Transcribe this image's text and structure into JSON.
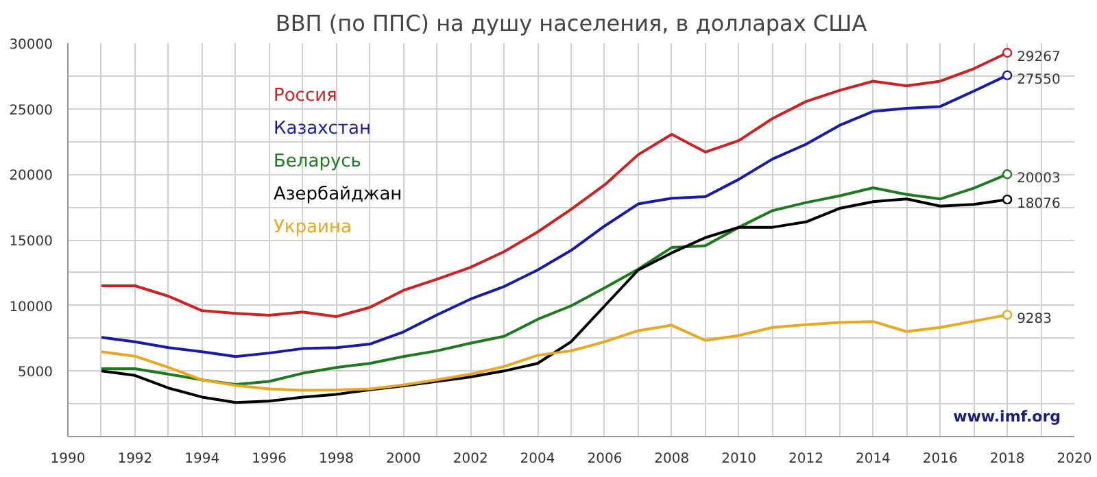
{
  "chart_data": {
    "type": "line",
    "title": "ВВП (по ППС) на душу населения, в долларах США",
    "x": [
      1991,
      1992,
      1993,
      1994,
      1995,
      1996,
      1997,
      1998,
      1999,
      2000,
      2001,
      2002,
      2003,
      2004,
      2005,
      2006,
      2007,
      2008,
      2009,
      2010,
      2011,
      2012,
      2013,
      2014,
      2015,
      2016,
      2017,
      2018
    ],
    "series": [
      {
        "name": "Россия",
        "color": "#cc2222",
        "values": [
          11500,
          11500,
          10700,
          9600,
          9400,
          9250,
          9500,
          9150,
          9850,
          11150,
          12000,
          12900,
          14100,
          15600,
          17330,
          19200,
          21500,
          23050,
          21700,
          22570,
          24250,
          25550,
          26400,
          27100,
          26750,
          27100,
          28050,
          29267
        ],
        "value_labels": [
          null,
          null,
          null,
          null,
          null,
          null,
          null,
          null,
          null,
          null,
          null,
          null,
          null,
          null,
          null,
          null,
          null,
          null,
          null,
          null,
          null,
          null,
          null,
          null,
          null,
          null,
          null,
          "29267"
        ]
      },
      {
        "name": "Казахстан",
        "color": "#1a1aa6",
        "values": [
          7570,
          7230,
          6780,
          6470,
          6100,
          6370,
          6710,
          6780,
          7050,
          7980,
          9280,
          10480,
          11440,
          12700,
          14200,
          16060,
          17740,
          18180,
          18290,
          19620,
          21160,
          22290,
          23730,
          24800,
          25030,
          25170,
          26340,
          27550
        ],
        "value_labels": [
          null,
          null,
          null,
          null,
          null,
          null,
          null,
          null,
          null,
          null,
          null,
          null,
          null,
          null,
          null,
          null,
          null,
          null,
          null,
          null,
          null,
          null,
          null,
          null,
          null,
          null,
          null,
          "27550"
        ]
      },
      {
        "name": "Беларусь",
        "color": "#1e7a1e",
        "values": [
          5170,
          5170,
          4760,
          4320,
          3970,
          4210,
          4830,
          5270,
          5580,
          6100,
          6540,
          7120,
          7640,
          8940,
          9970,
          11340,
          12770,
          14420,
          14550,
          15960,
          17230,
          17840,
          18360,
          18970,
          18460,
          18120,
          18940,
          20003
        ],
        "value_labels": [
          null,
          null,
          null,
          null,
          null,
          null,
          null,
          null,
          null,
          null,
          null,
          null,
          null,
          null,
          null,
          null,
          null,
          null,
          null,
          null,
          null,
          null,
          null,
          null,
          null,
          null,
          null,
          "20003"
        ]
      },
      {
        "name": "Азербайджан",
        "color": "#000000",
        "values": [
          5000,
          4660,
          3700,
          3010,
          2600,
          2710,
          3010,
          3220,
          3560,
          3870,
          4210,
          4550,
          5000,
          5580,
          7230,
          9970,
          12700,
          14010,
          15170,
          15960,
          15960,
          16370,
          17400,
          17910,
          18120,
          17570,
          17710,
          18076
        ],
        "value_labels": [
          null,
          null,
          null,
          null,
          null,
          null,
          null,
          null,
          null,
          null,
          null,
          null,
          null,
          null,
          null,
          null,
          null,
          null,
          null,
          null,
          null,
          null,
          null,
          null,
          null,
          null,
          null,
          "18076"
        ]
      },
      {
        "name": "Украина",
        "color": "#e8a820",
        "values": [
          6470,
          6130,
          5270,
          4320,
          3900,
          3630,
          3530,
          3560,
          3630,
          3940,
          4320,
          4760,
          5340,
          6200,
          6540,
          7230,
          8080,
          8490,
          7330,
          7710,
          8320,
          8530,
          8700,
          8770,
          8010,
          8320,
          8800,
          9283
        ],
        "value_labels": [
          null,
          null,
          null,
          null,
          null,
          null,
          null,
          null,
          null,
          null,
          null,
          null,
          null,
          null,
          null,
          null,
          null,
          null,
          null,
          null,
          null,
          null,
          null,
          null,
          null,
          null,
          null,
          "9283"
        ]
      }
    ],
    "xlim": [
      1990,
      2020
    ],
    "xticks": [
      1990,
      {
        "value": 1991,
        "label": null
      },
      1992,
      {
        "value": 1993,
        "label": null
      },
      1994,
      {
        "value": 1995,
        "label": null
      },
      1996,
      {
        "value": 1997,
        "label": null
      },
      1998,
      {
        "value": 1999,
        "label": null
      },
      2000,
      {
        "value": 2001,
        "label": null
      },
      2002,
      {
        "value": 2003,
        "label": null
      },
      2004,
      {
        "value": 2005,
        "label": null
      },
      2006,
      {
        "value": 2007,
        "label": null
      },
      2008,
      {
        "value": 2009,
        "label": null
      },
      2010,
      {
        "value": 2011,
        "label": null
      },
      2012,
      {
        "value": 2013,
        "label": null
      },
      2014,
      {
        "value": 2015,
        "label": null
      },
      2016,
      {
        "value": 2017,
        "label": null
      },
      2018,
      {
        "value": 2019,
        "label": null
      },
      2020
    ],
    "ylim": [
      0,
      30000
    ],
    "yticks": [
      {
        "value": 0,
        "label": null
      },
      {
        "value": 2500,
        "label": null
      },
      5000,
      {
        "value": 7500,
        "label": null
      },
      10000,
      {
        "value": 12500,
        "label": null
      },
      15000,
      {
        "value": 17500,
        "label": null
      },
      20000,
      {
        "value": 22500,
        "label": null
      },
      25000,
      {
        "value": 27500,
        "label": null
      },
      30000
    ],
    "grid": true,
    "legend": "top left",
    "line_style": "solid",
    "annotations": [
      "www.imf.org"
    ]
  }
}
